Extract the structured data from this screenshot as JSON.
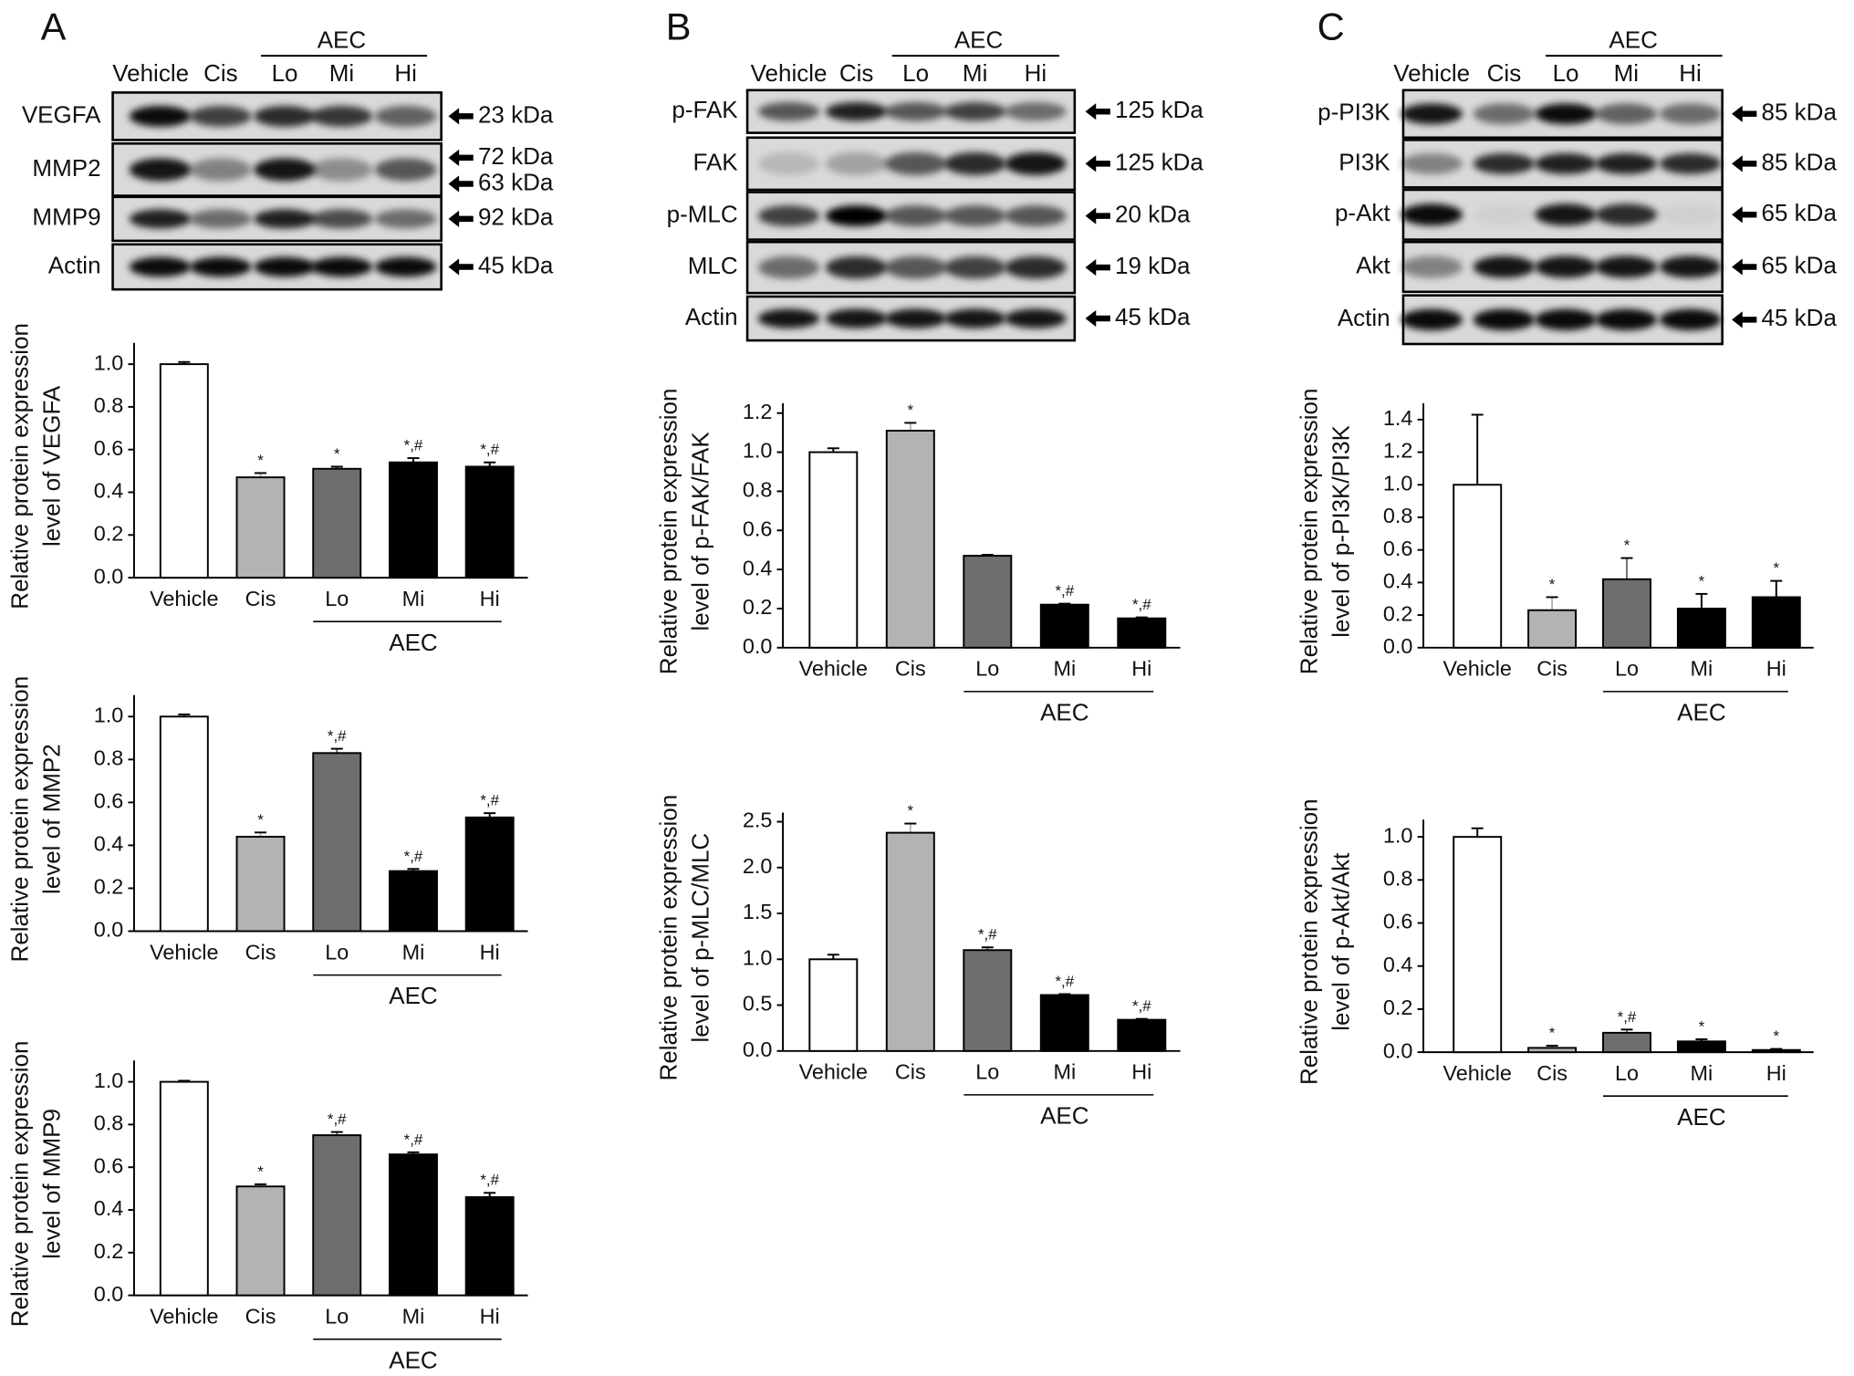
{
  "blots": [
    {
      "label": "A",
      "lanes": [
        "Vehicle",
        "Cis",
        "Lo",
        "Mi",
        "Hi"
      ],
      "group": "AEC",
      "rows": [
        {
          "name": "VEGFA",
          "sizes": [
            "23 kDa"
          ]
        },
        {
          "name": "MMP2",
          "sizes": [
            "72 kDa",
            "63 kDa"
          ]
        },
        {
          "name": "MMP9",
          "sizes": [
            "92 kDa"
          ]
        },
        {
          "name": "Actin",
          "sizes": [
            "45 kDa"
          ]
        }
      ]
    },
    {
      "label": "B",
      "lanes": [
        "Vehicle",
        "Cis",
        "Lo",
        "Mi",
        "Hi"
      ],
      "group": "AEC",
      "rows": [
        {
          "name": "p-FAK",
          "sizes": [
            "125 kDa"
          ]
        },
        {
          "name": "FAK",
          "sizes": [
            "125 kDa"
          ]
        },
        {
          "name": "p-MLC",
          "sizes": [
            "20 kDa"
          ]
        },
        {
          "name": "MLC",
          "sizes": [
            "19 kDa"
          ]
        },
        {
          "name": "Actin",
          "sizes": [
            "45 kDa"
          ]
        }
      ]
    },
    {
      "label": "C",
      "lanes": [
        "Vehicle",
        "Cis",
        "Lo",
        "Mi",
        "Hi"
      ],
      "group": "AEC",
      "rows": [
        {
          "name": "p-PI3K",
          "sizes": [
            "85 kDa"
          ]
        },
        {
          "name": "PI3K",
          "sizes": [
            "85 kDa"
          ]
        },
        {
          "name": "p-Akt",
          "sizes": [
            "65 kDa"
          ]
        },
        {
          "name": "Akt",
          "sizes": [
            "65 kDa"
          ]
        },
        {
          "name": "Actin",
          "sizes": [
            "45 kDa"
          ]
        }
      ]
    }
  ],
  "chart_data": [
    {
      "type": "bar",
      "ylabel": [
        "Relative protein expression",
        "level of VEGFA"
      ],
      "categories": [
        "Vehicle",
        "Cis",
        "Lo",
        "Mi",
        "Hi"
      ],
      "group": "AEC",
      "values": [
        1.0,
        0.47,
        0.51,
        0.54,
        0.52
      ],
      "errors": [
        0.01,
        0.02,
        0.01,
        0.02,
        0.02
      ],
      "markers": [
        null,
        "*",
        "*",
        "*,#",
        "*,#"
      ],
      "colors": [
        "#ffffff",
        "#b3b3b3",
        "#6e6e6e",
        "#000000",
        "#000000"
      ],
      "ylim": [
        0,
        1.1
      ],
      "yticks": [
        {
          "value": 0,
          "label": "0.0"
        },
        0.2,
        0.4,
        0.6,
        0.8,
        {
          "value": 1,
          "label": "1.0"
        }
      ]
    },
    {
      "type": "bar",
      "ylabel": [
        "Relative protein expression",
        "level of MMP2"
      ],
      "categories": [
        "Vehicle",
        "Cis",
        "Lo",
        "Mi",
        "Hi"
      ],
      "group": "AEC",
      "values": [
        1.0,
        0.44,
        0.83,
        0.28,
        0.53
      ],
      "errors": [
        0.01,
        0.02,
        0.02,
        0.01,
        0.02
      ],
      "markers": [
        null,
        "*",
        "*,#",
        "*,#",
        "*,#"
      ],
      "colors": [
        "#ffffff",
        "#b3b3b3",
        "#6e6e6e",
        "#000000",
        "#000000"
      ],
      "ylim": [
        0,
        1.1
      ],
      "yticks": [
        {
          "value": 0,
          "label": "0.0"
        },
        0.2,
        0.4,
        0.6,
        0.8,
        {
          "value": 1,
          "label": "1.0"
        }
      ]
    },
    {
      "type": "bar",
      "ylabel": [
        "Relative protein expression",
        "level of MMP9"
      ],
      "categories": [
        "Vehicle",
        "Cis",
        "Lo",
        "Mi",
        "Hi"
      ],
      "group": "AEC",
      "values": [
        1.0,
        0.51,
        0.75,
        0.66,
        0.46
      ],
      "errors": [
        0.005,
        0.01,
        0.015,
        0.01,
        0.02
      ],
      "markers": [
        null,
        "*",
        "*,#",
        "*,#",
        "*,#"
      ],
      "colors": [
        "#ffffff",
        "#b3b3b3",
        "#6e6e6e",
        "#000000",
        "#000000"
      ],
      "ylim": [
        0,
        1.1
      ],
      "yticks": [
        {
          "value": 0,
          "label": "0.0"
        },
        0.2,
        0.4,
        0.6,
        0.8,
        {
          "value": 1,
          "label": "1.0"
        }
      ]
    },
    {
      "type": "bar",
      "ylabel": [
        "Relative protein expression",
        "level of p-FAK/FAK"
      ],
      "categories": [
        "Vehicle",
        "Cis",
        "Lo",
        "Mi",
        "Hi"
      ],
      "group": "AEC",
      "values": [
        1.0,
        1.11,
        0.47,
        0.22,
        0.15
      ],
      "errors": [
        0.02,
        0.04,
        0.005,
        0.005,
        0.005
      ],
      "markers": [
        null,
        "*",
        null,
        "*,#",
        "*,#"
      ],
      "colors": [
        "#ffffff",
        "#b3b3b3",
        "#6e6e6e",
        "#000000",
        "#000000"
      ],
      "ylim": [
        0,
        1.25
      ],
      "yticks": [
        {
          "value": 0,
          "label": "0.0"
        },
        0.2,
        0.4,
        0.6,
        0.8,
        {
          "value": 1,
          "label": "1.0"
        },
        1.2
      ]
    },
    {
      "type": "bar",
      "ylabel": [
        "Relative protein expression",
        "level of p-MLC/MLC"
      ],
      "categories": [
        "Vehicle",
        "Cis",
        "Lo",
        "Mi",
        "Hi"
      ],
      "group": "AEC",
      "values": [
        1.0,
        2.38,
        1.1,
        0.61,
        0.34
      ],
      "errors": [
        0.05,
        0.1,
        0.03,
        0.01,
        0.01
      ],
      "markers": [
        null,
        "*",
        "*,#",
        "*,#",
        "*,#"
      ],
      "colors": [
        "#ffffff",
        "#b3b3b3",
        "#6e6e6e",
        "#000000",
        "#000000"
      ],
      "ylim": [
        0,
        2.6
      ],
      "yticks": [
        {
          "value": 0,
          "label": "0.0"
        },
        0.5,
        {
          "value": 1,
          "label": "1.0"
        },
        1.5,
        {
          "value": 2,
          "label": "2.0"
        },
        2.5
      ]
    },
    {
      "type": "bar",
      "ylabel": [
        "Relative protein expression",
        "level of p-PI3K/PI3K"
      ],
      "categories": [
        "Vehicle",
        "Cis",
        "Lo",
        "Mi",
        "Hi"
      ],
      "group": "AEC",
      "values": [
        1.0,
        0.23,
        0.42,
        0.24,
        0.31
      ],
      "errors": [
        0.43,
        0.08,
        0.13,
        0.09,
        0.1
      ],
      "markers": [
        null,
        "*",
        "*",
        "*",
        "*"
      ],
      "colors": [
        "#ffffff",
        "#b3b3b3",
        "#6e6e6e",
        "#000000",
        "#000000"
      ],
      "ylim": [
        0,
        1.5
      ],
      "yticks": [
        {
          "value": 0,
          "label": "0.0"
        },
        0.2,
        0.4,
        0.6,
        0.8,
        {
          "value": 1,
          "label": "1.0"
        },
        1.2,
        1.4
      ]
    },
    {
      "type": "bar",
      "ylabel": [
        "Relative protein expression",
        "level of p-Akt/Akt"
      ],
      "categories": [
        "Vehicle",
        "Cis",
        "Lo",
        "Mi",
        "Hi"
      ],
      "group": "AEC",
      "values": [
        1.0,
        0.02,
        0.09,
        0.05,
        0.01
      ],
      "errors": [
        0.04,
        0.01,
        0.015,
        0.01,
        0.005
      ],
      "markers": [
        null,
        "*",
        "*,#",
        "*",
        "*"
      ],
      "colors": [
        "#ffffff",
        "#b3b3b3",
        "#6e6e6e",
        "#000000",
        "#000000"
      ],
      "ylim": [
        0,
        1.08
      ],
      "yticks": [
        {
          "value": 0,
          "label": "0.0"
        },
        0.2,
        0.4,
        0.6,
        0.8,
        {
          "value": 1,
          "label": "1.0"
        }
      ]
    }
  ]
}
